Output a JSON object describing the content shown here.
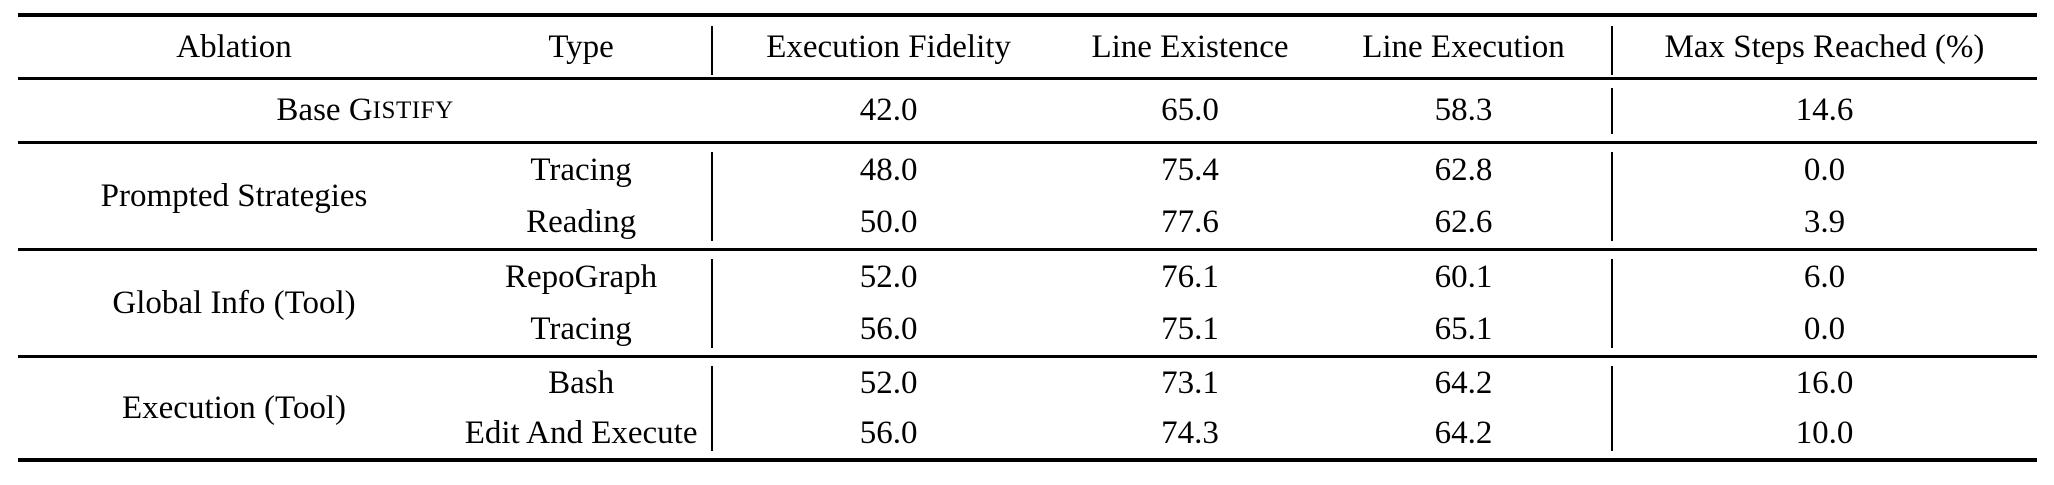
{
  "table": {
    "columns": [
      "Ablation",
      "Type",
      "Execution Fidelity",
      "Line Existence",
      "Line Execution",
      "Max Steps Reached (%)"
    ],
    "base_row": {
      "label_prefix": "Base G",
      "label_smallcaps": "ISTIFY",
      "execution_fidelity": "42.0",
      "line_existence": "65.0",
      "line_execution": "58.3",
      "max_steps_reached": "14.6"
    },
    "sections": [
      {
        "ablation": "Prompted Strategies",
        "rows": [
          {
            "type": "Tracing",
            "execution_fidelity": "48.0",
            "line_existence": "75.4",
            "line_execution": "62.8",
            "max_steps_reached": "0.0"
          },
          {
            "type": "Reading",
            "execution_fidelity": "50.0",
            "line_existence": "77.6",
            "line_execution": "62.6",
            "max_steps_reached": "3.9"
          }
        ]
      },
      {
        "ablation": "Global Info (Tool)",
        "rows": [
          {
            "type": "RepoGraph",
            "execution_fidelity": "52.0",
            "line_existence": "76.1",
            "line_execution": "60.1",
            "max_steps_reached": "6.0"
          },
          {
            "type": "Tracing",
            "execution_fidelity": "56.0",
            "line_existence": "75.1",
            "line_execution": "65.1",
            "max_steps_reached": "0.0"
          }
        ]
      },
      {
        "ablation": "Execution (Tool)",
        "rows": [
          {
            "type": "Bash",
            "execution_fidelity": "52.0",
            "line_existence": "73.1",
            "line_execution": "64.2",
            "max_steps_reached": "16.0"
          },
          {
            "type": "Edit And Execute",
            "execution_fidelity": "56.0",
            "line_existence": "74.3",
            "line_execution": "64.2",
            "max_steps_reached": "10.0"
          }
        ]
      }
    ],
    "colors": {
      "text": "#000000",
      "background": "#ffffff",
      "rule": "#000000"
    }
  }
}
